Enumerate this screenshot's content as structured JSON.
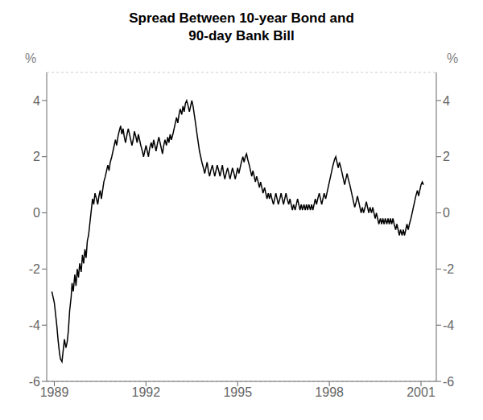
{
  "chart_data": {
    "type": "line",
    "title": "Spread Between 10-year Bond and\n90-day Bank Bill",
    "ylabel": "%",
    "y2label": "%",
    "color": "#000000",
    "grid": true,
    "xlim": [
      1988.75,
      2001.5
    ],
    "xticks": [
      1989,
      1992,
      1995,
      1998,
      2001
    ],
    "ylim": [
      -6,
      5
    ],
    "yticks": [
      -6,
      -4,
      -2,
      0,
      2,
      4
    ],
    "y2lim": [
      -6,
      5
    ],
    "y2ticks": [
      -6,
      -4,
      -2,
      0,
      2,
      4
    ],
    "x": [
      1988.92,
      1989.0,
      1989.08,
      1989.12,
      1989.17,
      1989.2,
      1989.25,
      1989.3,
      1989.33,
      1989.38,
      1989.42,
      1989.46,
      1989.5,
      1989.55,
      1989.58,
      1989.62,
      1989.67,
      1989.71,
      1989.75,
      1989.79,
      1989.83,
      1989.88,
      1989.92,
      1989.96,
      1990.0,
      1990.04,
      1990.08,
      1990.12,
      1990.17,
      1990.21,
      1990.25,
      1990.29,
      1990.33,
      1990.38,
      1990.42,
      1990.46,
      1990.5,
      1990.54,
      1990.58,
      1990.62,
      1990.67,
      1990.71,
      1990.75,
      1990.79,
      1990.83,
      1990.88,
      1990.92,
      1990.96,
      1991.0,
      1991.04,
      1991.08,
      1991.12,
      1991.17,
      1991.21,
      1991.25,
      1991.29,
      1991.33,
      1991.38,
      1991.42,
      1991.46,
      1991.5,
      1991.54,
      1991.58,
      1991.62,
      1991.67,
      1991.71,
      1991.75,
      1991.79,
      1991.83,
      1991.88,
      1991.92,
      1991.96,
      1992.0,
      1992.04,
      1992.08,
      1992.12,
      1992.17,
      1992.21,
      1992.25,
      1992.29,
      1992.33,
      1992.38,
      1992.42,
      1992.46,
      1992.5,
      1992.54,
      1992.58,
      1992.62,
      1992.67,
      1992.71,
      1992.75,
      1992.79,
      1992.83,
      1992.88,
      1992.92,
      1992.96,
      1993.0,
      1993.04,
      1993.08,
      1993.12,
      1993.17,
      1993.21,
      1993.25,
      1993.29,
      1993.33,
      1993.38,
      1993.42,
      1993.46,
      1993.5,
      1993.54,
      1993.58,
      1993.62,
      1993.67,
      1993.71,
      1993.75,
      1993.79,
      1993.83,
      1993.88,
      1993.92,
      1993.96,
      1994.0,
      1994.04,
      1994.08,
      1994.12,
      1994.17,
      1994.21,
      1994.25,
      1994.29,
      1994.33,
      1994.38,
      1994.42,
      1994.46,
      1994.5,
      1994.54,
      1994.58,
      1994.62,
      1994.67,
      1994.71,
      1994.75,
      1994.79,
      1994.83,
      1994.88,
      1994.92,
      1994.96,
      1995.0,
      1995.04,
      1995.08,
      1995.12,
      1995.17,
      1995.21,
      1995.25,
      1995.29,
      1995.33,
      1995.38,
      1995.42,
      1995.46,
      1995.5,
      1995.54,
      1995.58,
      1995.62,
      1995.67,
      1995.71,
      1995.75,
      1995.79,
      1995.83,
      1995.88,
      1995.92,
      1995.96,
      1996.0,
      1996.04,
      1996.08,
      1996.12,
      1996.17,
      1996.21,
      1996.25,
      1996.29,
      1996.33,
      1996.38,
      1996.42,
      1996.46,
      1996.5,
      1996.54,
      1996.58,
      1996.62,
      1996.67,
      1996.71,
      1996.75,
      1996.79,
      1996.83,
      1996.88,
      1996.92,
      1996.96,
      1997.0,
      1997.04,
      1997.08,
      1997.12,
      1997.17,
      1997.21,
      1997.25,
      1997.29,
      1997.33,
      1997.38,
      1997.42,
      1997.46,
      1997.5,
      1997.54,
      1997.58,
      1997.62,
      1997.67,
      1997.71,
      1997.75,
      1997.79,
      1997.83,
      1997.88,
      1997.92,
      1997.96,
      1998.0,
      1998.04,
      1998.08,
      1998.12,
      1998.17,
      1998.21,
      1998.25,
      1998.29,
      1998.33,
      1998.38,
      1998.42,
      1998.46,
      1998.5,
      1998.54,
      1998.58,
      1998.62,
      1998.67,
      1998.71,
      1998.75,
      1998.79,
      1998.83,
      1998.88,
      1998.92,
      1998.96,
      1999.0,
      1999.04,
      1999.08,
      1999.12,
      1999.17,
      1999.21,
      1999.25,
      1999.29,
      1999.33,
      1999.38,
      1999.42,
      1999.46,
      1999.5,
      1999.54,
      1999.58,
      1999.62,
      1999.67,
      1999.71,
      1999.75,
      1999.79,
      1999.83,
      1999.88,
      1999.92,
      1999.96,
      2000.0,
      2000.04,
      2000.08,
      2000.12,
      2000.17,
      2000.21,
      2000.25,
      2000.29,
      2000.33,
      2000.38,
      2000.42,
      2000.46,
      2000.5,
      2000.54,
      2000.58,
      2000.62,
      2000.67,
      2000.71,
      2000.75,
      2000.79,
      2000.83,
      2000.88,
      2000.92,
      2000.96,
      2001.0,
      2001.04,
      2001.08
    ],
    "values": [
      -2.8,
      -3.2,
      -4.0,
      -4.5,
      -5.0,
      -5.2,
      -5.3,
      -4.8,
      -4.5,
      -4.8,
      -4.6,
      -4.2,
      -3.5,
      -3.0,
      -2.5,
      -2.8,
      -2.2,
      -2.6,
      -2.0,
      -2.3,
      -1.8,
      -2.1,
      -1.5,
      -1.8,
      -1.3,
      -1.6,
      -1.0,
      -0.8,
      -0.3,
      0.1,
      0.5,
      0.3,
      0.7,
      0.5,
      0.3,
      0.6,
      0.8,
      0.5,
      0.8,
      1.1,
      1.3,
      1.5,
      1.7,
      1.5,
      1.8,
      2.0,
      2.2,
      2.4,
      2.6,
      2.4,
      2.7,
      2.9,
      3.1,
      2.8,
      3.0,
      2.7,
      2.5,
      2.8,
      3.0,
      2.8,
      2.6,
      2.4,
      2.6,
      2.9,
      2.7,
      2.5,
      2.8,
      2.6,
      2.4,
      2.2,
      2.0,
      2.2,
      2.4,
      2.2,
      2.0,
      2.3,
      2.5,
      2.3,
      2.6,
      2.4,
      2.2,
      2.5,
      2.7,
      2.5,
      2.3,
      2.1,
      2.4,
      2.6,
      2.4,
      2.7,
      2.5,
      2.8,
      2.6,
      2.8,
      3.0,
      3.2,
      3.4,
      3.2,
      3.5,
      3.7,
      3.5,
      3.8,
      3.6,
      3.9,
      4.0,
      3.8,
      3.6,
      3.8,
      4.0,
      3.8,
      3.5,
      3.2,
      2.8,
      2.5,
      2.2,
      2.0,
      1.8,
      1.6,
      1.4,
      1.6,
      1.8,
      1.5,
      1.3,
      1.5,
      1.7,
      1.5,
      1.3,
      1.5,
      1.7,
      1.5,
      1.3,
      1.5,
      1.7,
      1.4,
      1.2,
      1.4,
      1.6,
      1.4,
      1.2,
      1.4,
      1.6,
      1.4,
      1.2,
      1.4,
      1.6,
      1.4,
      1.6,
      1.8,
      2.0,
      1.8,
      2.0,
      2.1,
      1.9,
      1.7,
      1.5,
      1.3,
      1.5,
      1.3,
      1.1,
      1.3,
      1.1,
      0.9,
      1.1,
      0.9,
      0.7,
      0.9,
      0.7,
      0.5,
      0.7,
      0.5,
      0.7,
      0.5,
      0.3,
      0.5,
      0.7,
      0.5,
      0.3,
      0.5,
      0.7,
      0.5,
      0.3,
      0.5,
      0.7,
      0.5,
      0.3,
      0.5,
      0.3,
      0.1,
      0.3,
      0.1,
      0.3,
      0.5,
      0.3,
      0.1,
      0.3,
      0.1,
      0.3,
      0.1,
      0.3,
      0.1,
      0.3,
      0.1,
      0.3,
      0.1,
      0.3,
      0.5,
      0.3,
      0.5,
      0.7,
      0.5,
      0.3,
      0.5,
      0.7,
      0.5,
      0.7,
      0.9,
      1.1,
      1.3,
      1.5,
      1.7,
      1.9,
      2.0,
      1.8,
      1.6,
      1.8,
      1.6,
      1.4,
      1.2,
      1.0,
      1.2,
      1.4,
      1.2,
      1.0,
      0.8,
      0.6,
      0.4,
      0.2,
      0.4,
      0.6,
      0.4,
      0.2,
      0.0,
      0.2,
      0.0,
      0.2,
      0.4,
      0.2,
      0.0,
      0.2,
      0.0,
      0.2,
      0.0,
      -0.2,
      0.0,
      -0.2,
      -0.4,
      -0.2,
      -0.4,
      -0.2,
      -0.4,
      -0.2,
      -0.4,
      -0.2,
      -0.4,
      -0.2,
      -0.4,
      -0.2,
      -0.4,
      -0.6,
      -0.4,
      -0.6,
      -0.8,
      -0.6,
      -0.8,
      -0.6,
      -0.8,
      -0.6,
      -0.4,
      -0.6,
      -0.4,
      -0.2,
      0.0,
      0.2,
      0.4,
      0.6,
      0.8,
      0.6,
      0.8,
      1.0,
      1.1,
      1.0
    ]
  }
}
